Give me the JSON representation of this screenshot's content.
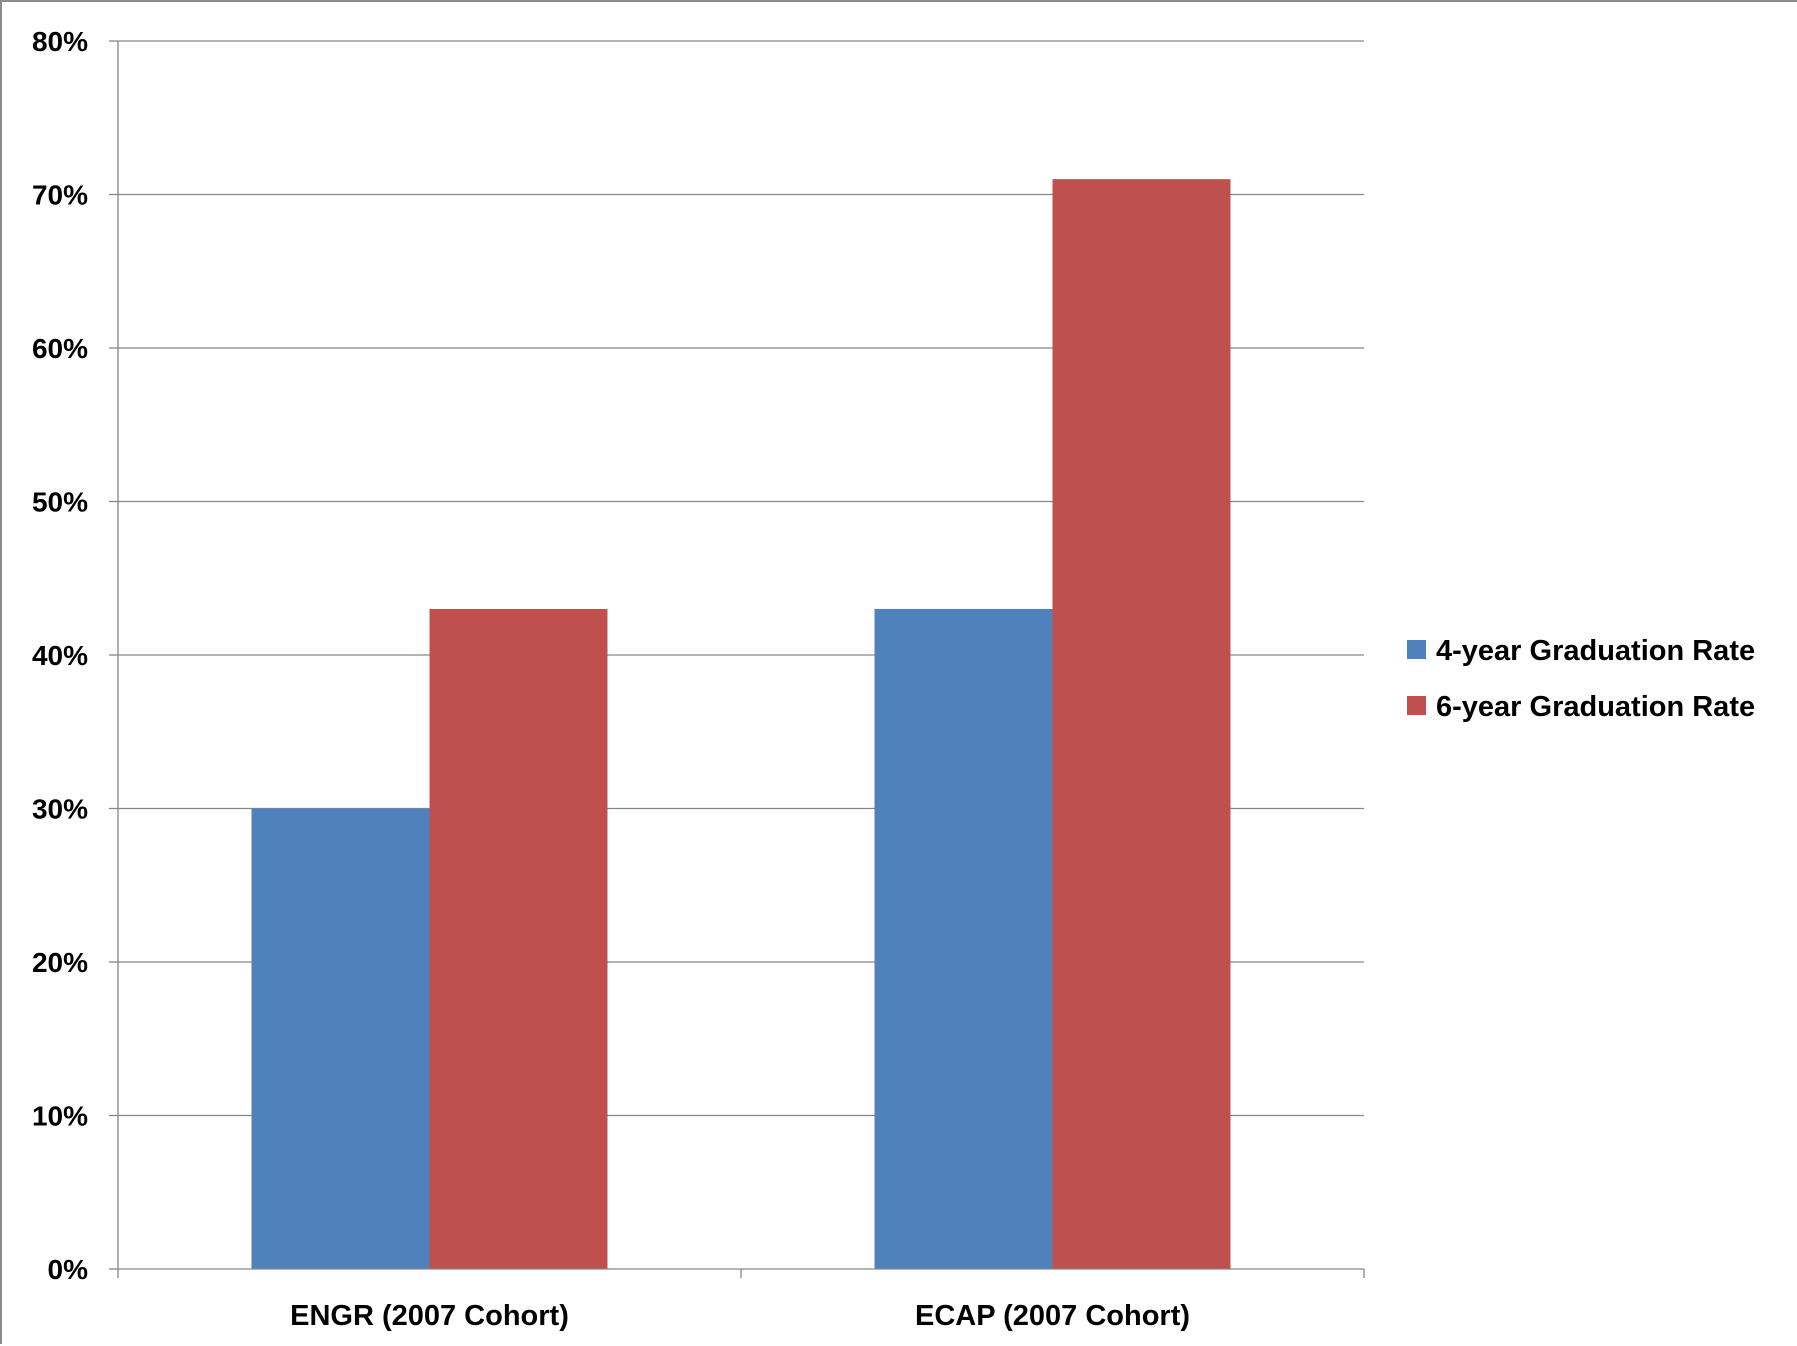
{
  "chart_data": {
    "type": "bar",
    "title": "",
    "xlabel": "",
    "ylabel": "",
    "categories": [
      "ENGR (2007 Cohort)",
      "ECAP (2007 Cohort)"
    ],
    "series": [
      {
        "name": "4-year Graduation Rate",
        "values": [
          30,
          43
        ],
        "color": "#4F81BD"
      },
      {
        "name": "6-year Graduation Rate",
        "values": [
          43,
          71
        ],
        "color": "#C0504D"
      }
    ],
    "ylim": [
      0,
      80
    ],
    "y_ticks": [
      0,
      10,
      20,
      30,
      40,
      50,
      60,
      70,
      80
    ],
    "y_tick_labels": [
      "0%",
      "10%",
      "20%",
      "30%",
      "40%",
      "50%",
      "60%",
      "70%",
      "80%"
    ],
    "grid": true,
    "legend_position": "right"
  }
}
